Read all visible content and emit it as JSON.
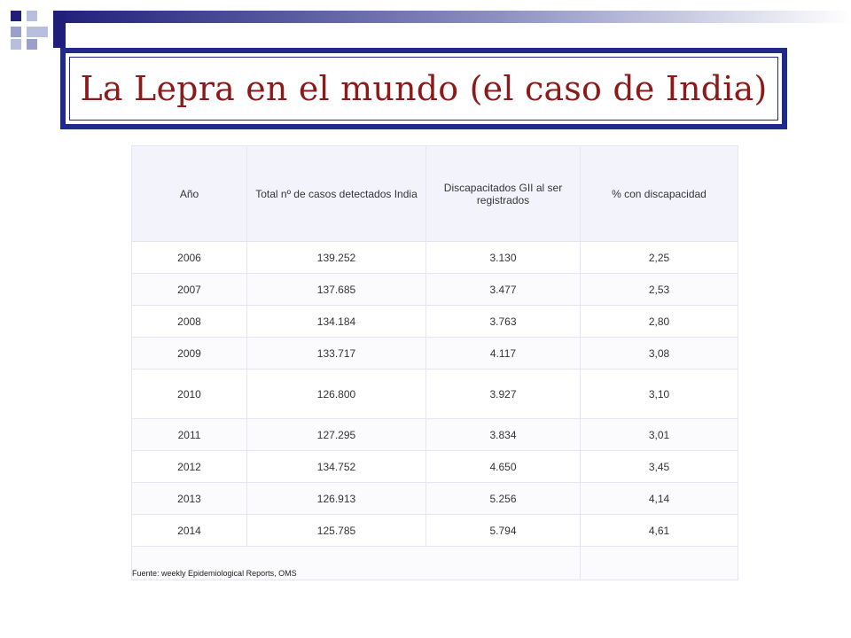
{
  "slide": {
    "title": "La Lepra en el mundo (el caso de India)"
  },
  "table": {
    "headers": [
      "Año",
      "Total nº de casos  detectados India",
      "Discapacitados GII al ser registrados",
      "% con discapacidad"
    ],
    "rows": [
      [
        "2006",
        "139.252",
        "3.130",
        "2,25"
      ],
      [
        "2007",
        "137.685",
        "3.477",
        "2,53"
      ],
      [
        "2008",
        "134.184",
        "3.763",
        "2,80"
      ],
      [
        "2009",
        "133.717",
        "4.117",
        "3,08"
      ],
      [
        "2010",
        "126.800",
        "3.927",
        "3,10"
      ],
      [
        "2011",
        "127.295",
        "3.834",
        "3,01"
      ],
      [
        "2012",
        "134.752",
        "4.650",
        "3,45"
      ],
      [
        "2013",
        "126.913",
        "5.256",
        "4,14"
      ],
      [
        "2014",
        "125.785",
        "5.794",
        "4,61"
      ]
    ],
    "source": "Fuente: weekly Epidemiological Reports, OMS"
  },
  "colors": {
    "title": "#8b1a1a",
    "frame": "#1f2a8a",
    "accent": "#1f1f7a"
  }
}
